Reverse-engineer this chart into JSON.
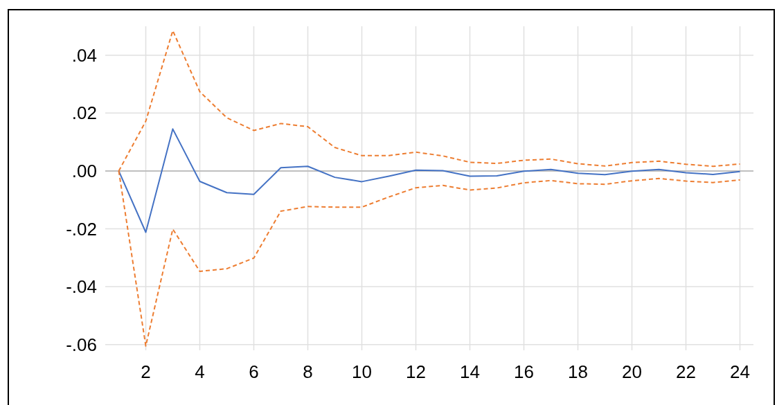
{
  "chart_data": {
    "type": "line",
    "x": [
      1,
      2,
      3,
      4,
      5,
      6,
      7,
      8,
      9,
      10,
      11,
      12,
      13,
      14,
      15,
      16,
      17,
      18,
      19,
      20,
      21,
      22,
      23,
      24
    ],
    "xlim": [
      0.5,
      24.5
    ],
    "xticks": [
      2,
      4,
      6,
      8,
      10,
      12,
      14,
      16,
      18,
      20,
      22,
      24
    ],
    "series": [
      {
        "color": "#4472c4",
        "line_style": "solid",
        "values": [
          0,
          -0.0212,
          0.0145,
          -0.0036,
          -0.0075,
          -0.0081,
          0.0011,
          0.0016,
          -0.0022,
          -0.0037,
          -0.0018,
          0.0003,
          0.0001,
          -0.0018,
          -0.0017,
          -0.0001,
          0.0005,
          -0.0008,
          -0.0013,
          -0.0001,
          0.0005,
          -0.0006,
          -0.0012,
          -0.0002
        ]
      },
      {
        "color": "#ed7d31",
        "line_style": "dashed",
        "values": [
          0,
          0.0172,
          0.0485,
          0.0274,
          0.0184,
          0.014,
          0.0164,
          0.0153,
          0.0081,
          0.0053,
          0.0053,
          0.0065,
          0.0052,
          0.003,
          0.0026,
          0.0037,
          0.0041,
          0.0025,
          0.0017,
          0.0029,
          0.0034,
          0.0023,
          0.0016,
          0.0024
        ]
      },
      {
        "color": "#ed7d31",
        "line_style": "dashed",
        "values": [
          0,
          -0.0605,
          -0.0201,
          -0.0347,
          -0.0338,
          -0.0301,
          -0.0139,
          -0.0123,
          -0.0125,
          -0.0125,
          -0.009,
          -0.0058,
          -0.005,
          -0.0066,
          -0.0059,
          -0.0041,
          -0.0033,
          -0.0044,
          -0.0046,
          -0.0034,
          -0.0026,
          -0.0035,
          -0.004,
          -0.0031
        ]
      }
    ],
    "ylim": [
      -0.062,
      0.05
    ],
    "yticks": [
      {
        "value": -0.06,
        "label": "-.06"
      },
      {
        "value": -0.04,
        "label": "-.04"
      },
      {
        "value": -0.02,
        "label": "-.02"
      },
      {
        "value": 0,
        "label": ".00"
      },
      {
        "value": 0.02,
        "label": ".02"
      },
      {
        "value": 0.04,
        "label": ".04"
      }
    ],
    "grid": true,
    "marker": "none"
  }
}
